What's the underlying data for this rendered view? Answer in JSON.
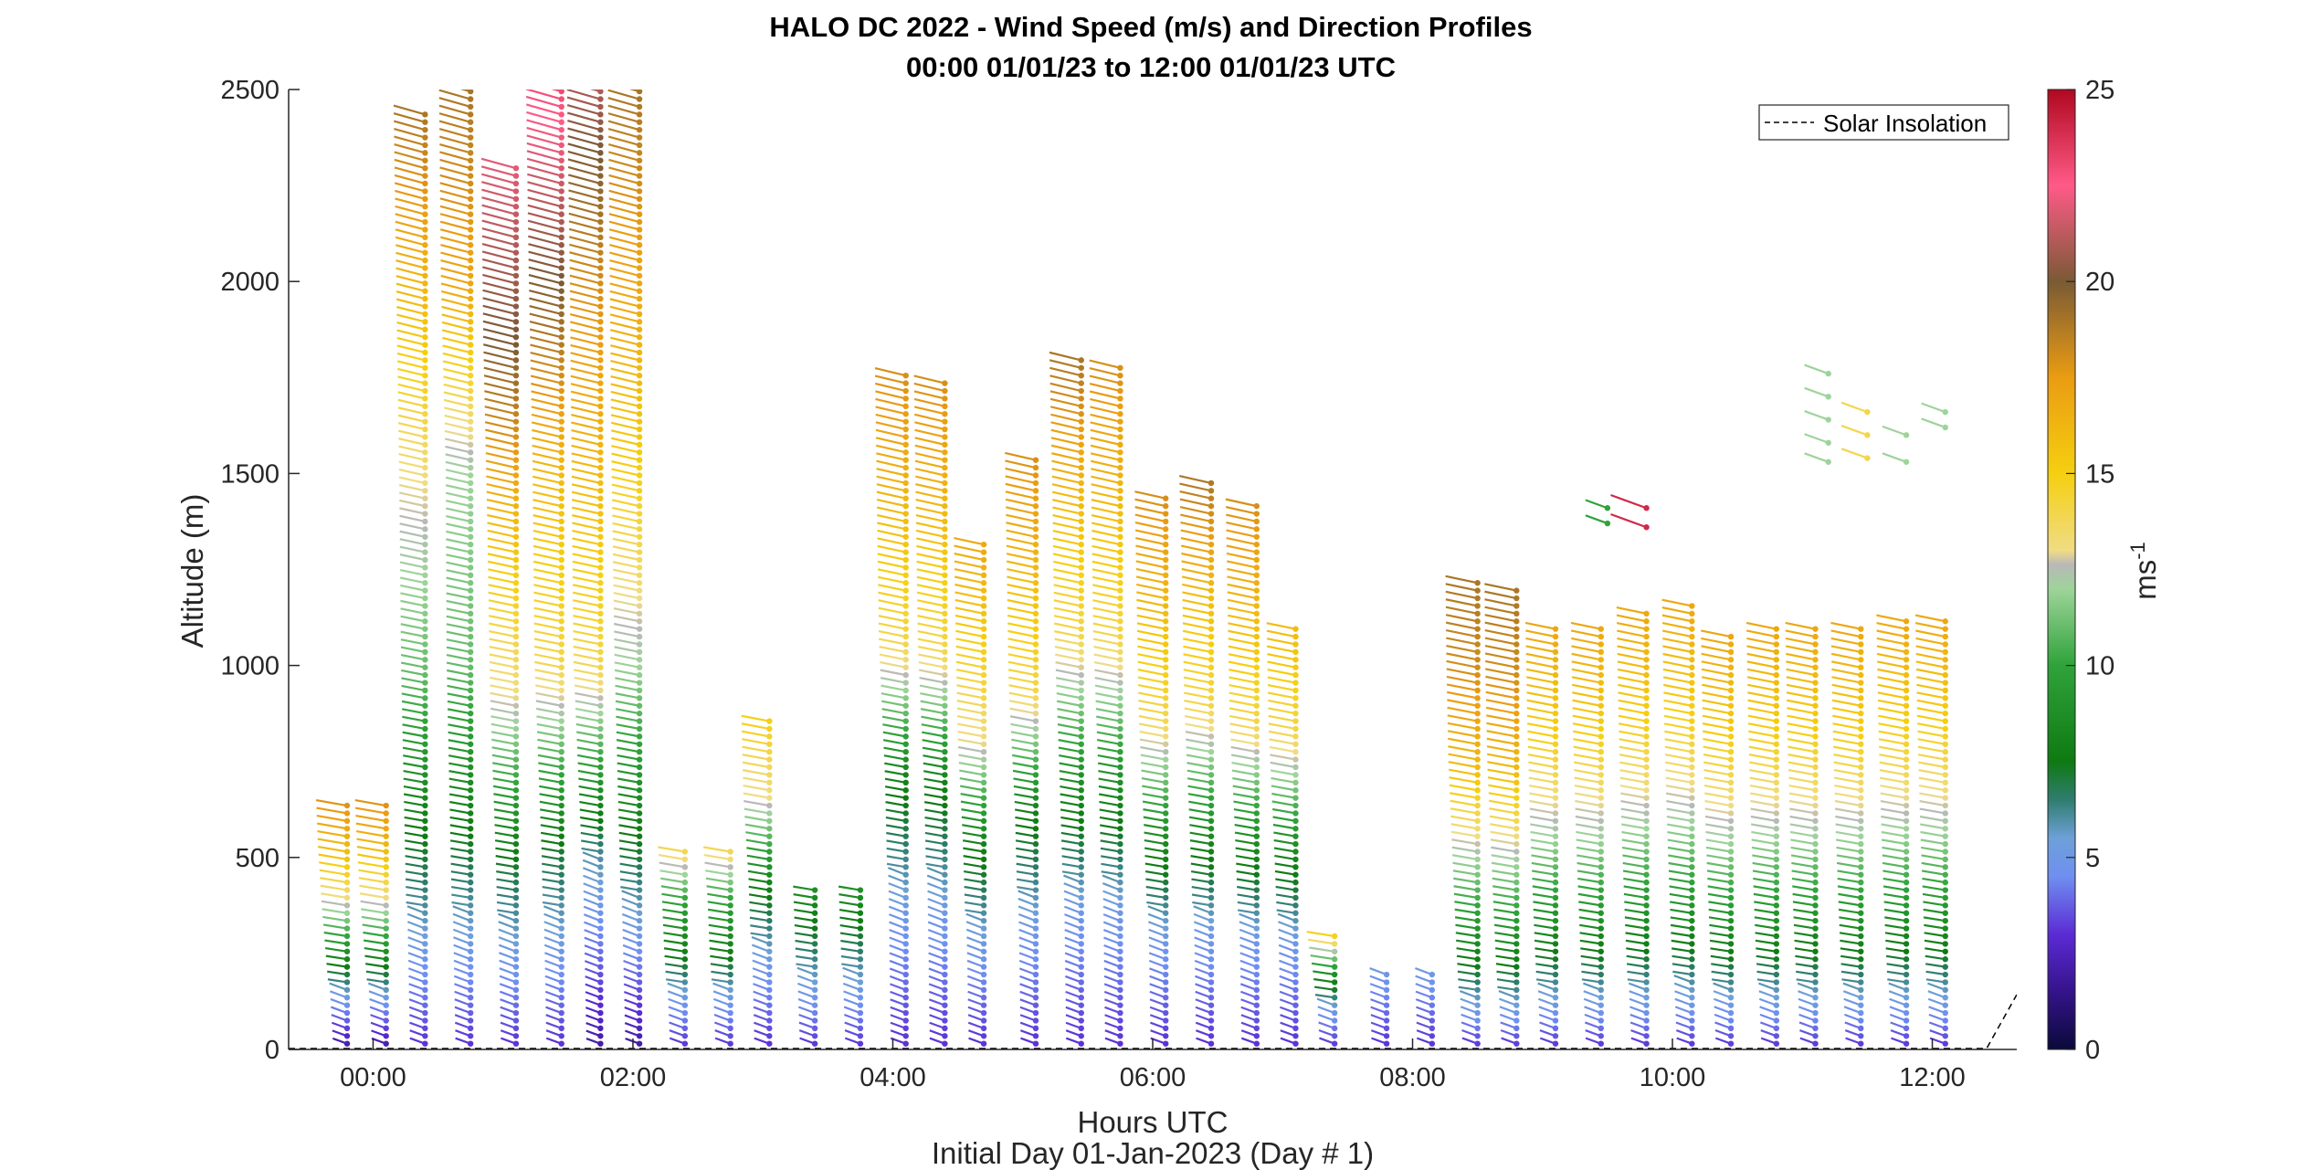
{
  "chart_data": {
    "type": "scatter",
    "subtype": "wind-barb-profile",
    "title": "HALO DC 2022 - Wind Speed (m/s) and Direction Profiles",
    "subtitle": "00:00 01/01/23 to 12:00 01/01/23  UTC",
    "xlabel": "Hours UTC",
    "xlabel2": "Initial Day 01-Jan-2023 (Day # 1)",
    "ylabel": "Altitude (m)",
    "colorbar_label": "ms",
    "colorbar_label_exp": "-1",
    "x_ticks": [
      "00:00",
      "02:00",
      "04:00",
      "06:00",
      "08:00",
      "10:00",
      "12:00"
    ],
    "y_ticks": [
      "0",
      "500",
      "1000",
      "1500",
      "2000",
      "2500"
    ],
    "colorbar_ticks": [
      "0",
      "5",
      "10",
      "15",
      "20",
      "25"
    ],
    "xlim_hours": [
      -0.65,
      12.65
    ],
    "ylim": [
      0,
      2500
    ],
    "clim": [
      0,
      25
    ],
    "legend": {
      "entry": "Solar Insolation",
      "placement": "top-right",
      "style": "dashed"
    },
    "profiles": [
      {
        "hour": -0.2,
        "top": 650,
        "sample_speed_ms": [
          2,
          5,
          9,
          13,
          16,
          18
        ]
      },
      {
        "hour": 0.1,
        "top": 650,
        "sample_speed_ms": [
          2,
          5,
          9,
          13,
          16,
          18
        ]
      },
      {
        "hour": 0.4,
        "top": 2450,
        "sample_speed_ms": [
          3,
          7,
          11,
          13,
          16,
          19
        ]
      },
      {
        "hour": 0.75,
        "top": 2500,
        "sample_speed_ms": [
          3,
          7,
          11,
          12,
          17,
          19
        ]
      },
      {
        "hour": 1.1,
        "top": 2300,
        "sample_speed_ms": [
          3,
          7,
          13,
          16,
          20,
          22
        ]
      },
      {
        "hour": 1.45,
        "top": 2500,
        "sample_speed_ms": [
          3,
          7,
          14,
          16,
          20,
          23
        ]
      },
      {
        "hour": 1.75,
        "top": 2500,
        "sample_speed_ms": [
          2,
          6,
          14,
          16,
          18,
          21
        ]
      },
      {
        "hour": 2.05,
        "top": 2500,
        "sample_speed_ms": [
          2,
          7,
          12,
          15,
          17,
          19
        ]
      },
      {
        "hour": 2.4,
        "top": 520,
        "sample_speed_ms": [
          3,
          5,
          8,
          10,
          14
        ]
      },
      {
        "hour": 2.75,
        "top": 520,
        "sample_speed_ms": [
          3,
          5,
          8,
          10,
          14
        ]
      },
      {
        "hour": 3.05,
        "top": 870,
        "sample_speed_ms": [
          3,
          5,
          8,
          13,
          15
        ]
      },
      {
        "hour": 3.4,
        "top": 430,
        "sample_speed_ms": [
          3,
          5,
          7,
          9
        ]
      },
      {
        "hour": 3.75,
        "top": 430,
        "sample_speed_ms": [
          3,
          5,
          7,
          9
        ]
      },
      {
        "hour": 4.1,
        "top": 1760,
        "sample_speed_ms": [
          3,
          5,
          8,
          14,
          16,
          18
        ]
      },
      {
        "hour": 4.4,
        "top": 1740,
        "sample_speed_ms": [
          3,
          5,
          8,
          14,
          16,
          18
        ]
      },
      {
        "hour": 4.7,
        "top": 1330,
        "sample_speed_ms": [
          3,
          5,
          8,
          13,
          15,
          17
        ]
      },
      {
        "hour": 5.1,
        "top": 1550,
        "sample_speed_ms": [
          3,
          5,
          8,
          14,
          16,
          18
        ]
      },
      {
        "hour": 5.45,
        "top": 1800,
        "sample_speed_ms": [
          3,
          5,
          9,
          14,
          16,
          19
        ]
      },
      {
        "hour": 5.75,
        "top": 1780,
        "sample_speed_ms": [
          3,
          5,
          9,
          14,
          16,
          18
        ]
      },
      {
        "hour": 6.1,
        "top": 1440,
        "sample_speed_ms": [
          3,
          5,
          9,
          14,
          16,
          18
        ]
      },
      {
        "hour": 6.45,
        "top": 1490,
        "sample_speed_ms": [
          3,
          5,
          9,
          14,
          16,
          19
        ]
      },
      {
        "hour": 6.8,
        "top": 1420,
        "sample_speed_ms": [
          3,
          5,
          9,
          14,
          16,
          18
        ]
      },
      {
        "hour": 7.1,
        "top": 1100,
        "sample_speed_ms": [
          3,
          5,
          9,
          14,
          16
        ]
      },
      {
        "hour": 7.4,
        "top": 300,
        "sample_speed_ms": [
          3,
          5,
          9,
          15
        ]
      },
      {
        "hour": 7.8,
        "top": 200,
        "sample_speed_ms": [
          3,
          5
        ]
      },
      {
        "hour": 8.15,
        "top": 200,
        "sample_speed_ms": [
          3,
          5
        ]
      },
      {
        "hour": 8.5,
        "top": 1230,
        "sample_speed_ms": [
          3,
          8,
          12,
          16,
          18,
          19
        ]
      },
      {
        "hour": 8.8,
        "top": 1210,
        "sample_speed_ms": [
          3,
          8,
          12,
          16,
          18,
          19
        ]
      },
      {
        "hour": 9.1,
        "top": 1100,
        "sample_speed_ms": [
          3,
          8,
          12,
          15,
          17
        ]
      },
      {
        "hour": 9.45,
        "top": 1100,
        "sample_speed_ms": [
          3,
          8,
          12,
          15,
          17
        ]
      },
      {
        "hour": 9.8,
        "top": 1150,
        "sample_speed_ms": [
          3,
          8,
          12,
          15,
          17
        ]
      },
      {
        "hour": 10.15,
        "top": 1170,
        "sample_speed_ms": [
          3,
          8,
          12,
          15,
          17
        ]
      },
      {
        "hour": 10.45,
        "top": 1080,
        "sample_speed_ms": [
          3,
          8,
          12,
          15,
          17
        ]
      },
      {
        "hour": 10.8,
        "top": 1100,
        "sample_speed_ms": [
          3,
          8,
          12,
          15,
          17
        ]
      },
      {
        "hour": 11.1,
        "top": 1100,
        "sample_speed_ms": [
          3,
          8,
          12,
          15,
          17
        ]
      },
      {
        "hour": 11.45,
        "top": 1100,
        "sample_speed_ms": [
          3,
          8,
          12,
          15,
          17
        ]
      },
      {
        "hour": 11.8,
        "top": 1130,
        "sample_speed_ms": [
          3,
          8,
          12,
          15,
          17
        ]
      },
      {
        "hour": 12.1,
        "top": 1130,
        "sample_speed_ms": [
          3,
          8,
          12,
          15,
          17
        ]
      }
    ],
    "upper_fragments": [
      {
        "hour": 11.2,
        "altitudes": [
          1530,
          1580,
          1640,
          1700,
          1760
        ],
        "speed_ms": 12
      },
      {
        "hour": 11.5,
        "altitudes": [
          1540,
          1600,
          1660
        ],
        "speed_ms": 14
      },
      {
        "hour": 11.8,
        "altitudes": [
          1530,
          1600
        ],
        "speed_ms": 12
      },
      {
        "hour": 12.1,
        "altitudes": [
          1620,
          1660
        ],
        "speed_ms": 12
      },
      {
        "hour": 9.5,
        "altitudes": [
          1370,
          1410
        ],
        "speed_ms": 10
      },
      {
        "hour": 9.8,
        "altitudes": [
          1360,
          1410
        ],
        "speed_ms": 24
      }
    ]
  }
}
